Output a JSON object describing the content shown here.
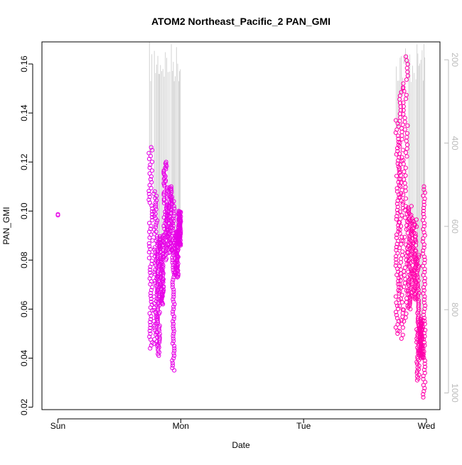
{
  "chart_data": {
    "type": "scatter",
    "title": "ATOM2 Northeast_Pacific_2 PAN_GMI",
    "xlabel": "Date",
    "ylabel": "PAN_GMI",
    "x_tick_labels": [
      "Sun",
      "Mon",
      "Tue",
      "Wed"
    ],
    "x_tick_values": [
      0,
      1,
      2,
      3
    ],
    "xlim": [
      -0.13,
      3.11
    ],
    "y_ticks": [
      0.02,
      0.04,
      0.06,
      0.08,
      0.1,
      0.12,
      0.14,
      0.16
    ],
    "y_tick_labels": [
      "0.02",
      "0.04",
      "0.06",
      "0.08",
      "0.10",
      "0.12",
      "0.14",
      "0.16"
    ],
    "ylim": [
      0.019,
      0.169
    ],
    "right_axis": {
      "label": "",
      "ticks": [
        200,
        400,
        600,
        800,
        1000
      ],
      "tick_labels": [
        "200",
        "400",
        "600",
        "800",
        "1000"
      ],
      "range_top_to_bottom": [
        157,
        1040
      ],
      "color": "#bbbbbb"
    },
    "colors": {
      "early_points": "#e600e6",
      "late_points": "#ff00aa",
      "pressure_line": "#c8c8c8"
    },
    "single_point": {
      "x": 0.0,
      "y": 0.0983
    },
    "clusters": [
      {
        "x_start": 0.74,
        "x_end": 0.77,
        "y_min": 0.044,
        "y_max": 0.126
      },
      {
        "x_start": 0.78,
        "x_end": 0.81,
        "y_min": 0.045,
        "y_max": 0.108
      },
      {
        "x_start": 0.81,
        "x_end": 0.83,
        "y_min": 0.041,
        "y_max": 0.088
      },
      {
        "x_start": 0.83,
        "x_end": 0.86,
        "y_min": 0.062,
        "y_max": 0.09
      },
      {
        "x_start": 0.86,
        "x_end": 0.89,
        "y_min": 0.08,
        "y_max": 0.12
      },
      {
        "x_start": 0.89,
        "x_end": 0.93,
        "y_min": 0.083,
        "y_max": 0.11
      },
      {
        "x_start": 0.93,
        "x_end": 0.95,
        "y_min": 0.035,
        "y_max": 0.104
      },
      {
        "x_start": 0.95,
        "x_end": 0.98,
        "y_min": 0.073,
        "y_max": 0.092
      },
      {
        "x_start": 0.98,
        "x_end": 1.0,
        "y_min": 0.086,
        "y_max": 0.1
      },
      {
        "x_start": 2.75,
        "x_end": 2.78,
        "y_min": 0.05,
        "y_max": 0.137
      },
      {
        "x_start": 2.78,
        "x_end": 2.81,
        "y_min": 0.048,
        "y_max": 0.15
      },
      {
        "x_start": 2.81,
        "x_end": 2.85,
        "y_min": 0.055,
        "y_max": 0.163
      },
      {
        "x_start": 2.85,
        "x_end": 2.88,
        "y_min": 0.06,
        "y_max": 0.102
      },
      {
        "x_start": 2.88,
        "x_end": 2.92,
        "y_min": 0.064,
        "y_max": 0.097
      },
      {
        "x_start": 2.92,
        "x_end": 2.94,
        "y_min": 0.031,
        "y_max": 0.082
      },
      {
        "x_start": 2.94,
        "x_end": 2.97,
        "y_min": 0.04,
        "y_max": 0.056
      },
      {
        "x_start": 2.97,
        "x_end": 2.99,
        "y_min": 0.024,
        "y_max": 0.11
      }
    ]
  }
}
